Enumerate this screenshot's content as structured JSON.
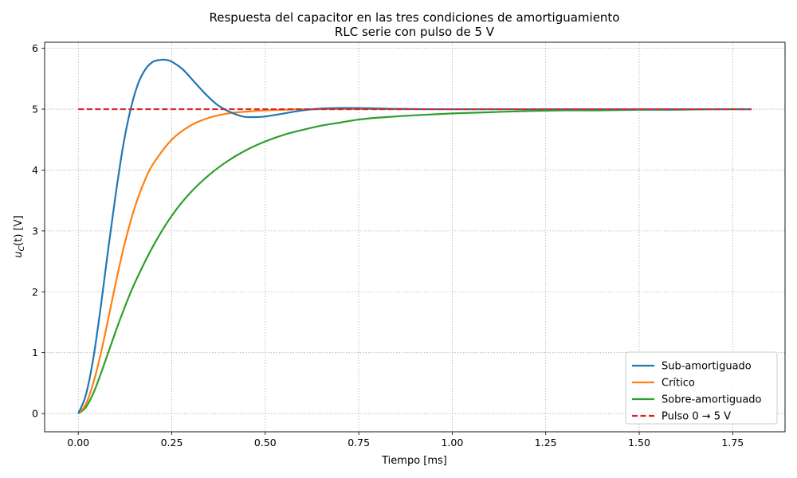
{
  "chart_data": {
    "type": "line",
    "title": "Respuesta del capacitor en las tres condiciones de amortiguamiento",
    "subtitle": "RLC serie con pulso de 5 V",
    "xlabel": "Tiempo [ms]",
    "ylabel": "u_C(t) [V]",
    "ylabel_parts": {
      "var": "u",
      "sub": "C",
      "rest": "(t) [V]"
    },
    "xlim": [
      -0.09,
      1.89
    ],
    "ylim": [
      -0.3,
      6.1
    ],
    "xticks": [
      0.0,
      0.25,
      0.5,
      0.75,
      1.0,
      1.25,
      1.5,
      1.75
    ],
    "xtick_labels": [
      "0.00",
      "0.25",
      "0.50",
      "0.75",
      "1.00",
      "1.25",
      "1.50",
      "1.75"
    ],
    "yticks": [
      0,
      1,
      2,
      3,
      4,
      5,
      6
    ],
    "ytick_labels": [
      "0",
      "1",
      "2",
      "3",
      "4",
      "5",
      "6"
    ],
    "grid": true,
    "legend_position": "lower-right",
    "series": [
      {
        "name": "Sub-amortiguado",
        "color": "#1f77b4",
        "dash": "solid",
        "x": [
          0.0,
          0.02,
          0.04,
          0.06,
          0.08,
          0.1,
          0.12,
          0.14,
          0.16,
          0.18,
          0.2,
          0.22,
          0.235,
          0.25,
          0.28,
          0.31,
          0.34,
          0.37,
          0.4,
          0.44,
          0.47,
          0.5,
          0.55,
          0.6,
          0.65,
          0.71,
          0.78,
          0.85,
          0.95,
          1.05,
          1.2,
          1.4,
          1.6,
          1.8
        ],
        "y": [
          0.0,
          0.3,
          0.9,
          1.75,
          2.7,
          3.6,
          4.4,
          5.0,
          5.42,
          5.66,
          5.78,
          5.81,
          5.81,
          5.78,
          5.65,
          5.45,
          5.25,
          5.08,
          4.97,
          4.88,
          4.87,
          4.88,
          4.93,
          4.98,
          5.01,
          5.02,
          5.015,
          5.005,
          5.0,
          5.0,
          5.0,
          5.0,
          5.0,
          5.0
        ]
      },
      {
        "name": "Crítico",
        "color": "#ff7f0e",
        "dash": "solid",
        "x": [
          0.0,
          0.02,
          0.04,
          0.06,
          0.08,
          0.1,
          0.12,
          0.14,
          0.16,
          0.18,
          0.2,
          0.25,
          0.3,
          0.35,
          0.4,
          0.45,
          0.5,
          0.55,
          0.6,
          0.7,
          0.8,
          1.0,
          1.2,
          1.5,
          1.8
        ],
        "y": [
          0.0,
          0.15,
          0.5,
          0.98,
          1.55,
          2.14,
          2.69,
          3.16,
          3.55,
          3.86,
          4.1,
          4.5,
          4.73,
          4.86,
          4.93,
          4.96,
          4.98,
          4.99,
          5.0,
          5.0,
          5.0,
          5.0,
          5.0,
          5.0,
          5.0
        ]
      },
      {
        "name": "Sobre-amortiguado",
        "color": "#2ca02c",
        "dash": "solid",
        "x": [
          0.0,
          0.02,
          0.04,
          0.06,
          0.08,
          0.1,
          0.12,
          0.15,
          0.2,
          0.25,
          0.3,
          0.35,
          0.4,
          0.45,
          0.5,
          0.55,
          0.6,
          0.65,
          0.7,
          0.75,
          0.8,
          0.9,
          1.0,
          1.1,
          1.2,
          1.3,
          1.4,
          1.5,
          1.6,
          1.7,
          1.8
        ],
        "y": [
          0.0,
          0.1,
          0.33,
          0.65,
          1.0,
          1.35,
          1.68,
          2.13,
          2.75,
          3.25,
          3.63,
          3.92,
          4.15,
          4.33,
          4.47,
          4.58,
          4.66,
          4.73,
          4.78,
          4.83,
          4.86,
          4.9,
          4.93,
          4.95,
          4.97,
          4.98,
          4.98,
          4.99,
          4.99,
          5.0,
          5.0
        ]
      },
      {
        "name": "Pulso 0 → 5 V",
        "color": "#d62728",
        "dash": "dashed",
        "x": [
          0.0,
          1.8
        ],
        "y": [
          5.0,
          5.0
        ]
      }
    ]
  }
}
